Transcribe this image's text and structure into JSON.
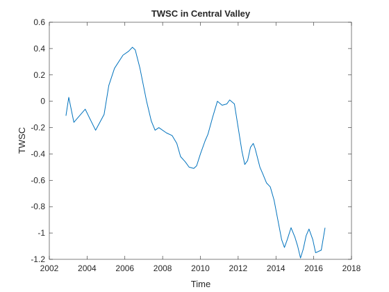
{
  "chart_data": {
    "type": "line",
    "title": "TWSC in Central Valley",
    "xlabel": "Time",
    "ylabel": "TWSC",
    "x": [
      2002.88,
      2003.03,
      2003.3,
      2003.9,
      2004.45,
      2004.9,
      2005.15,
      2005.45,
      2005.9,
      2006.2,
      2006.4,
      2006.55,
      2006.8,
      2007.15,
      2007.4,
      2007.6,
      2007.8,
      2008.2,
      2008.5,
      2008.75,
      2008.95,
      2009.2,
      2009.4,
      2009.65,
      2009.8,
      2010.0,
      2010.25,
      2010.4,
      2010.65,
      2010.9,
      2011.15,
      2011.4,
      2011.55,
      2011.8,
      2012.0,
      2012.2,
      2012.35,
      2012.5,
      2012.65,
      2012.8,
      2012.9,
      2013.15,
      2013.3,
      2013.5,
      2013.7,
      2013.9,
      2014.1,
      2014.3,
      2014.45,
      2014.6,
      2014.8,
      2015.0,
      2015.15,
      2015.3,
      2015.45,
      2015.6,
      2015.75,
      2015.95,
      2016.1,
      2016.4,
      2016.6
    ],
    "values": [
      -0.11,
      0.03,
      -0.16,
      -0.06,
      -0.22,
      -0.1,
      0.12,
      0.25,
      0.35,
      0.38,
      0.41,
      0.39,
      0.25,
      0.0,
      -0.15,
      -0.22,
      -0.2,
      -0.24,
      -0.26,
      -0.32,
      -0.42,
      -0.46,
      -0.5,
      -0.51,
      -0.49,
      -0.4,
      -0.3,
      -0.25,
      -0.12,
      0.0,
      -0.03,
      -0.02,
      0.01,
      -0.02,
      -0.2,
      -0.38,
      -0.48,
      -0.45,
      -0.35,
      -0.32,
      -0.36,
      -0.5,
      -0.55,
      -0.62,
      -0.65,
      -0.75,
      -0.9,
      -1.05,
      -1.11,
      -1.05,
      -0.96,
      -1.03,
      -1.1,
      -1.19,
      -1.12,
      -1.02,
      -0.97,
      -1.05,
      -1.15,
      -1.13,
      -0.96
    ],
    "color": "#0072bd",
    "xlim": [
      2002,
      2018
    ],
    "xticks": [
      2002,
      2004,
      2006,
      2008,
      2010,
      2012,
      2014,
      2016,
      2018
    ],
    "ylim": [
      -1.2,
      0.6
    ],
    "yticks": [
      -1.2,
      -1,
      -0.8,
      -0.6,
      -0.4,
      -0.2,
      0,
      0.2,
      0.4,
      0.6
    ]
  }
}
